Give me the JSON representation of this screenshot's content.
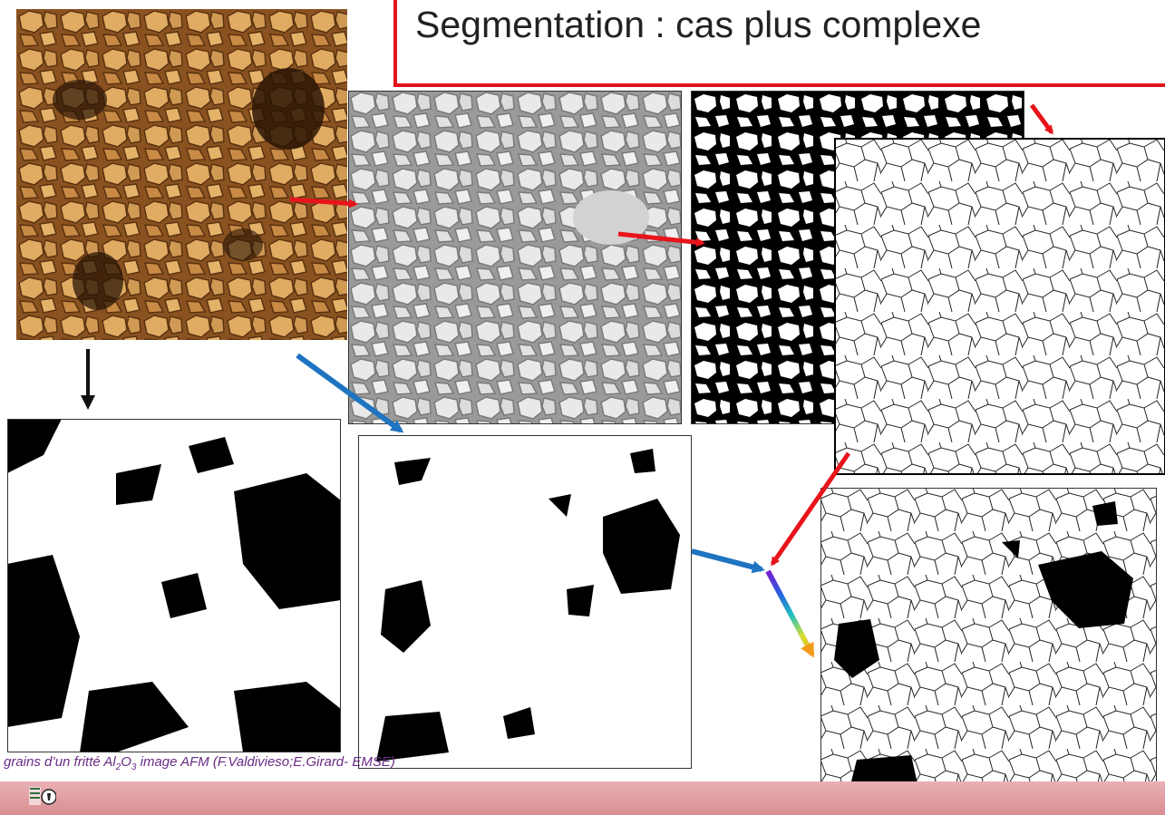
{
  "slide": {
    "title": "Segmentation : cas plus complexe",
    "caption": {
      "prefix": "grains d’un  fritté Al",
      "sub2": "2",
      "mid": "O",
      "sub3": "3",
      "suffix": "  image AFM (F.Valdivieso;E.Girard- EMSE)"
    },
    "logo_icon": "institution-logo-icon"
  },
  "colors": {
    "title_border": "#e3141b",
    "red_arrow": "#e8141b",
    "blue_arrow": "#1e74c0",
    "black_arrow": "#111111",
    "afm_brown": "#b77a33",
    "caption_text": "#6a2b86"
  }
}
